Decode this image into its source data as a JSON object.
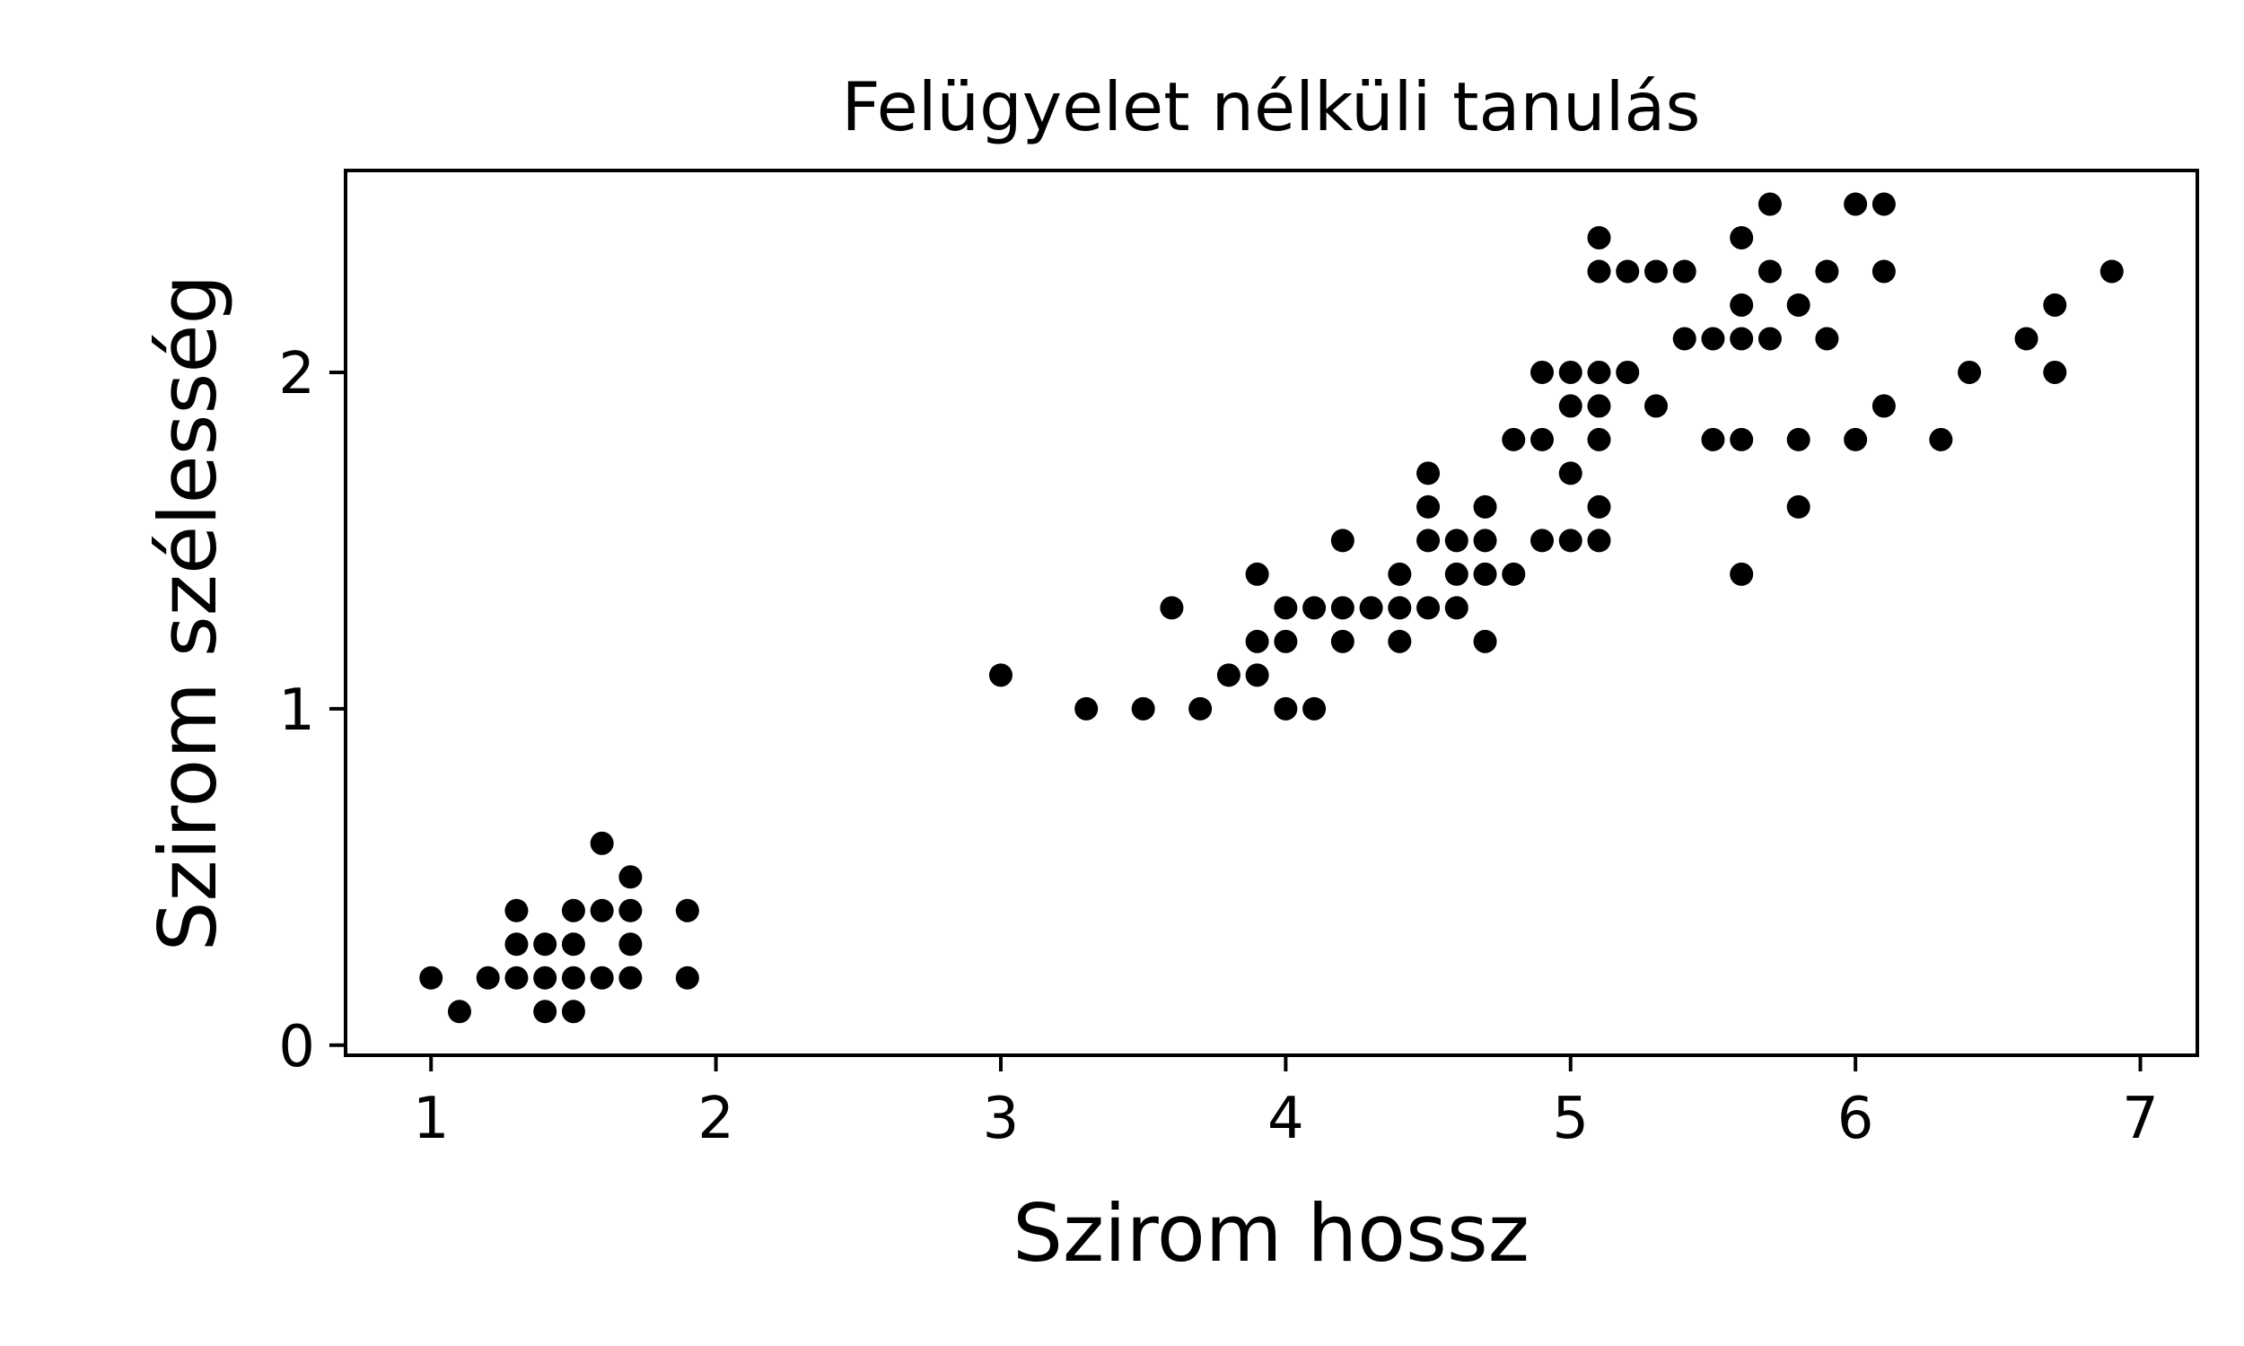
{
  "chart_data": {
    "type": "scatter",
    "title": "Felügyelet nélküli tanulás",
    "xlabel": "Szirom hossz",
    "ylabel": "Szirom szélesség",
    "xlim": [
      0.7,
      7.2
    ],
    "ylim": [
      -0.03,
      2.6
    ],
    "xticks": [
      1,
      2,
      3,
      4,
      5,
      6,
      7
    ],
    "yticks": [
      0,
      1,
      2
    ],
    "grid": false,
    "legend": "none",
    "marker_color": "#000000",
    "points": [
      [
        1.0,
        0.2
      ],
      [
        1.1,
        0.1
      ],
      [
        1.2,
        0.2
      ],
      [
        1.3,
        0.4
      ],
      [
        1.3,
        0.3
      ],
      [
        1.3,
        0.2
      ],
      [
        1.4,
        0.3
      ],
      [
        1.4,
        0.2
      ],
      [
        1.4,
        0.1
      ],
      [
        1.5,
        0.4
      ],
      [
        1.5,
        0.3
      ],
      [
        1.5,
        0.2
      ],
      [
        1.5,
        0.1
      ],
      [
        1.6,
        0.6
      ],
      [
        1.6,
        0.4
      ],
      [
        1.6,
        0.2
      ],
      [
        1.7,
        0.5
      ],
      [
        1.7,
        0.4
      ],
      [
        1.7,
        0.3
      ],
      [
        1.7,
        0.2
      ],
      [
        1.9,
        0.4
      ],
      [
        1.9,
        0.2
      ],
      [
        3.0,
        1.1
      ],
      [
        3.3,
        1.0
      ],
      [
        3.5,
        1.0
      ],
      [
        3.6,
        1.3
      ],
      [
        3.7,
        1.0
      ],
      [
        3.8,
        1.1
      ],
      [
        3.9,
        1.4
      ],
      [
        3.9,
        1.2
      ],
      [
        3.9,
        1.1
      ],
      [
        4.0,
        1.3
      ],
      [
        4.0,
        1.2
      ],
      [
        4.0,
        1.0
      ],
      [
        4.1,
        1.3
      ],
      [
        4.1,
        1.0
      ],
      [
        4.2,
        1.5
      ],
      [
        4.2,
        1.3
      ],
      [
        4.2,
        1.2
      ],
      [
        4.3,
        1.3
      ],
      [
        4.4,
        1.4
      ],
      [
        4.4,
        1.3
      ],
      [
        4.4,
        1.2
      ],
      [
        4.5,
        1.7
      ],
      [
        4.5,
        1.6
      ],
      [
        4.5,
        1.5
      ],
      [
        4.5,
        1.3
      ],
      [
        4.6,
        1.5
      ],
      [
        4.6,
        1.4
      ],
      [
        4.6,
        1.3
      ],
      [
        4.7,
        1.6
      ],
      [
        4.7,
        1.5
      ],
      [
        4.7,
        1.4
      ],
      [
        4.7,
        1.2
      ],
      [
        4.8,
        1.8
      ],
      [
        4.8,
        1.4
      ],
      [
        4.9,
        2.0
      ],
      [
        4.9,
        1.8
      ],
      [
        4.9,
        1.5
      ],
      [
        5.0,
        2.0
      ],
      [
        5.0,
        1.9
      ],
      [
        5.0,
        1.7
      ],
      [
        5.0,
        1.5
      ],
      [
        5.1,
        2.4
      ],
      [
        5.1,
        2.3
      ],
      [
        5.1,
        2.0
      ],
      [
        5.1,
        1.9
      ],
      [
        5.1,
        1.8
      ],
      [
        5.1,
        1.6
      ],
      [
        5.1,
        1.5
      ],
      [
        5.2,
        2.3
      ],
      [
        5.2,
        2.0
      ],
      [
        5.3,
        2.3
      ],
      [
        5.3,
        1.9
      ],
      [
        5.4,
        2.3
      ],
      [
        5.4,
        2.1
      ],
      [
        5.5,
        2.1
      ],
      [
        5.5,
        1.8
      ],
      [
        5.6,
        2.4
      ],
      [
        5.6,
        2.2
      ],
      [
        5.6,
        2.1
      ],
      [
        5.6,
        1.8
      ],
      [
        5.6,
        1.4
      ],
      [
        5.7,
        2.5
      ],
      [
        5.7,
        2.3
      ],
      [
        5.7,
        2.1
      ],
      [
        5.8,
        2.2
      ],
      [
        5.8,
        1.8
      ],
      [
        5.8,
        1.6
      ],
      [
        5.9,
        2.3
      ],
      [
        5.9,
        2.1
      ],
      [
        6.0,
        2.5
      ],
      [
        6.0,
        1.8
      ],
      [
        6.1,
        2.5
      ],
      [
        6.1,
        2.3
      ],
      [
        6.1,
        1.9
      ],
      [
        6.3,
        1.8
      ],
      [
        6.4,
        2.0
      ],
      [
        6.6,
        2.1
      ],
      [
        6.7,
        2.2
      ],
      [
        6.7,
        2.0
      ],
      [
        6.9,
        2.3
      ]
    ]
  }
}
